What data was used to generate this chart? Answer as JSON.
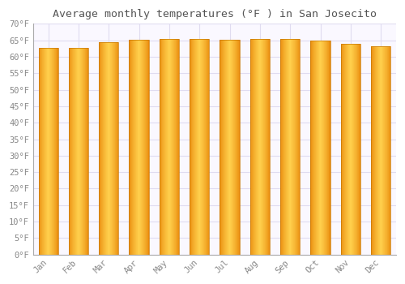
{
  "title": "Average monthly temperatures (°F ) in San Josecito",
  "months": [
    "Jan",
    "Feb",
    "Mar",
    "Apr",
    "May",
    "Jun",
    "Jul",
    "Aug",
    "Sep",
    "Oct",
    "Nov",
    "Dec"
  ],
  "temperatures": [
    62.6,
    62.6,
    64.4,
    65.3,
    65.5,
    65.5,
    65.1,
    65.5,
    65.5,
    64.9,
    63.9,
    63.1
  ],
  "ylim": [
    0,
    70
  ],
  "yticks": [
    0,
    5,
    10,
    15,
    20,
    25,
    30,
    35,
    40,
    45,
    50,
    55,
    60,
    65,
    70
  ],
  "bar_color_left": "#E8890A",
  "bar_color_center": "#FFD04D",
  "bar_color_right": "#E8890A",
  "bar_outline_color": "#C87800",
  "background_color": "#FFFFFF",
  "plot_bg_color": "#FAF8FF",
  "grid_color": "#E0DCF0",
  "title_fontsize": 9.5,
  "tick_fontsize": 7.5,
  "title_color": "#555555",
  "tick_color": "#888888",
  "bar_width": 0.65
}
